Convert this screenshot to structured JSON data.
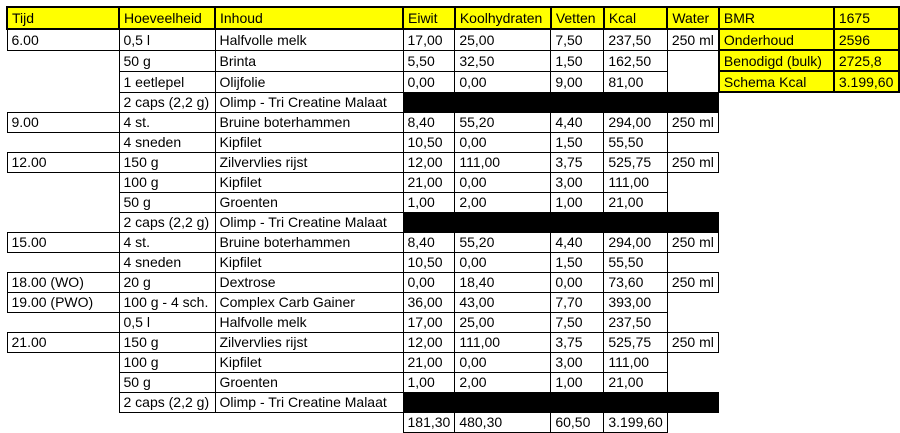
{
  "colors": {
    "header_bg": "#ffff00",
    "panel_bg": "#ffff00",
    "border": "#000000",
    "redaction": "#000000",
    "background": "#ffffff"
  },
  "header": {
    "columns": [
      "Tijd",
      "Hoeveelheid",
      "Inhoud",
      "Eiwit",
      "Koolhydraten",
      "Vetten",
      "Kcal",
      "Water"
    ]
  },
  "rows": [
    {
      "tijd": "6.00",
      "hoeveelheid": "0,5 l",
      "inhoud": "Halfvolle melk",
      "eiwit": "17,00",
      "koolhydraten": "25,00",
      "vetten": "7,50",
      "kcal": "237,50",
      "water": "250 ml",
      "blackout": false
    },
    {
      "tijd": "",
      "hoeveelheid": "50 g",
      "inhoud": "Brinta",
      "eiwit": "5,50",
      "koolhydraten": "32,50",
      "vetten": "1,50",
      "kcal": "162,50",
      "water": "",
      "blackout": false
    },
    {
      "tijd": "",
      "hoeveelheid": "1 eetlepel",
      "inhoud": "Olijfolie",
      "eiwit": "0,00",
      "koolhydraten": "0,00",
      "vetten": "9,00",
      "kcal": "81,00",
      "water": "",
      "blackout": false
    },
    {
      "tijd": "",
      "hoeveelheid": "2 caps (2,2 g)",
      "inhoud": "Olimp - Tri Creatine Malaat",
      "eiwit": "",
      "koolhydraten": "",
      "vetten": "",
      "kcal": "",
      "water": "",
      "blackout": true
    },
    {
      "tijd": "9.00",
      "hoeveelheid": "4 st.",
      "inhoud": "Bruine boterhammen",
      "eiwit": "8,40",
      "koolhydraten": "55,20",
      "vetten": "4,40",
      "kcal": "294,00",
      "water": "250 ml",
      "blackout": false
    },
    {
      "tijd": "",
      "hoeveelheid": "4 sneden",
      "inhoud": "Kipfilet",
      "eiwit": "10,50",
      "koolhydraten": "0,00",
      "vetten": "1,50",
      "kcal": "55,50",
      "water": "",
      "blackout": false
    },
    {
      "tijd": "12.00",
      "hoeveelheid": "150 g",
      "inhoud": "Zilvervlies rijst",
      "eiwit": "12,00",
      "koolhydraten": "111,00",
      "vetten": "3,75",
      "kcal": "525,75",
      "water": "250 ml",
      "blackout": false
    },
    {
      "tijd": "",
      "hoeveelheid": "100 g",
      "inhoud": "Kipfilet",
      "eiwit": "21,00",
      "koolhydraten": "0,00",
      "vetten": "3,00",
      "kcal": "111,00",
      "water": "",
      "blackout": false
    },
    {
      "tijd": "",
      "hoeveelheid": "50 g",
      "inhoud": "Groenten",
      "eiwit": "1,00",
      "koolhydraten": "2,00",
      "vetten": "1,00",
      "kcal": "21,00",
      "water": "",
      "blackout": false
    },
    {
      "tijd": "",
      "hoeveelheid": "2 caps (2,2 g)",
      "inhoud": "Olimp - Tri Creatine Malaat",
      "eiwit": "",
      "koolhydraten": "",
      "vetten": "",
      "kcal": "",
      "water": "",
      "blackout": true
    },
    {
      "tijd": "15.00",
      "hoeveelheid": "4 st.",
      "inhoud": "Bruine boterhammen",
      "eiwit": "8,40",
      "koolhydraten": "55,20",
      "vetten": "4,40",
      "kcal": "294,00",
      "water": "250 ml",
      "blackout": false
    },
    {
      "tijd": "",
      "hoeveelheid": "4 sneden",
      "inhoud": "Kipfilet",
      "eiwit": "10,50",
      "koolhydraten": "0,00",
      "vetten": "1,50",
      "kcal": "55,50",
      "water": "",
      "blackout": false
    },
    {
      "tijd": "18.00 (WO)",
      "hoeveelheid": "20 g",
      "inhoud": "Dextrose",
      "eiwit": "0,00",
      "koolhydraten": "18,40",
      "vetten": "0,00",
      "kcal": "73,60",
      "water": "250 ml",
      "blackout": false
    },
    {
      "tijd": "19.00 (PWO)",
      "hoeveelheid": "100 g - 4 sch.",
      "inhoud": "Complex Carb Gainer",
      "eiwit": "36,00",
      "koolhydraten": "43,00",
      "vetten": "7,70",
      "kcal": "393,00",
      "water": "",
      "blackout": false
    },
    {
      "tijd": "",
      "hoeveelheid": "0,5 l",
      "inhoud": "Halfvolle melk",
      "eiwit": "17,00",
      "koolhydraten": "25,00",
      "vetten": "7,50",
      "kcal": "237,50",
      "water": "",
      "blackout": false
    },
    {
      "tijd": "21.00",
      "hoeveelheid": "150 g",
      "inhoud": "Zilvervlies rijst",
      "eiwit": "12,00",
      "koolhydraten": "111,00",
      "vetten": "3,75",
      "kcal": "525,75",
      "water": "250 ml",
      "blackout": false
    },
    {
      "tijd": "",
      "hoeveelheid": "100 g",
      "inhoud": "Kipfilet",
      "eiwit": "21,00",
      "koolhydraten": "0,00",
      "vetten": "3,00",
      "kcal": "111,00",
      "water": "",
      "blackout": false
    },
    {
      "tijd": "",
      "hoeveelheid": "50 g",
      "inhoud": "Groenten",
      "eiwit": "1,00",
      "koolhydraten": "2,00",
      "vetten": "1,00",
      "kcal": "21,00",
      "water": "",
      "blackout": false
    },
    {
      "tijd": "",
      "hoeveelheid": "2 caps (2,2 g)",
      "inhoud": "Olimp - Tri Creatine Malaat",
      "eiwit": "",
      "koolhydraten": "",
      "vetten": "",
      "kcal": "",
      "water": "",
      "blackout": true
    }
  ],
  "totals": {
    "eiwit": "181,30",
    "koolhydraten": "480,30",
    "vetten": "60,50",
    "kcal": "3.199,60"
  },
  "summary": [
    {
      "label": "BMR",
      "value": "1675"
    },
    {
      "label": "Onderhoud",
      "value": "2596"
    },
    {
      "label": "Benodigd (bulk)",
      "value": "2725,8"
    },
    {
      "label": "Schema Kcal",
      "value": "3.199,60"
    }
  ]
}
